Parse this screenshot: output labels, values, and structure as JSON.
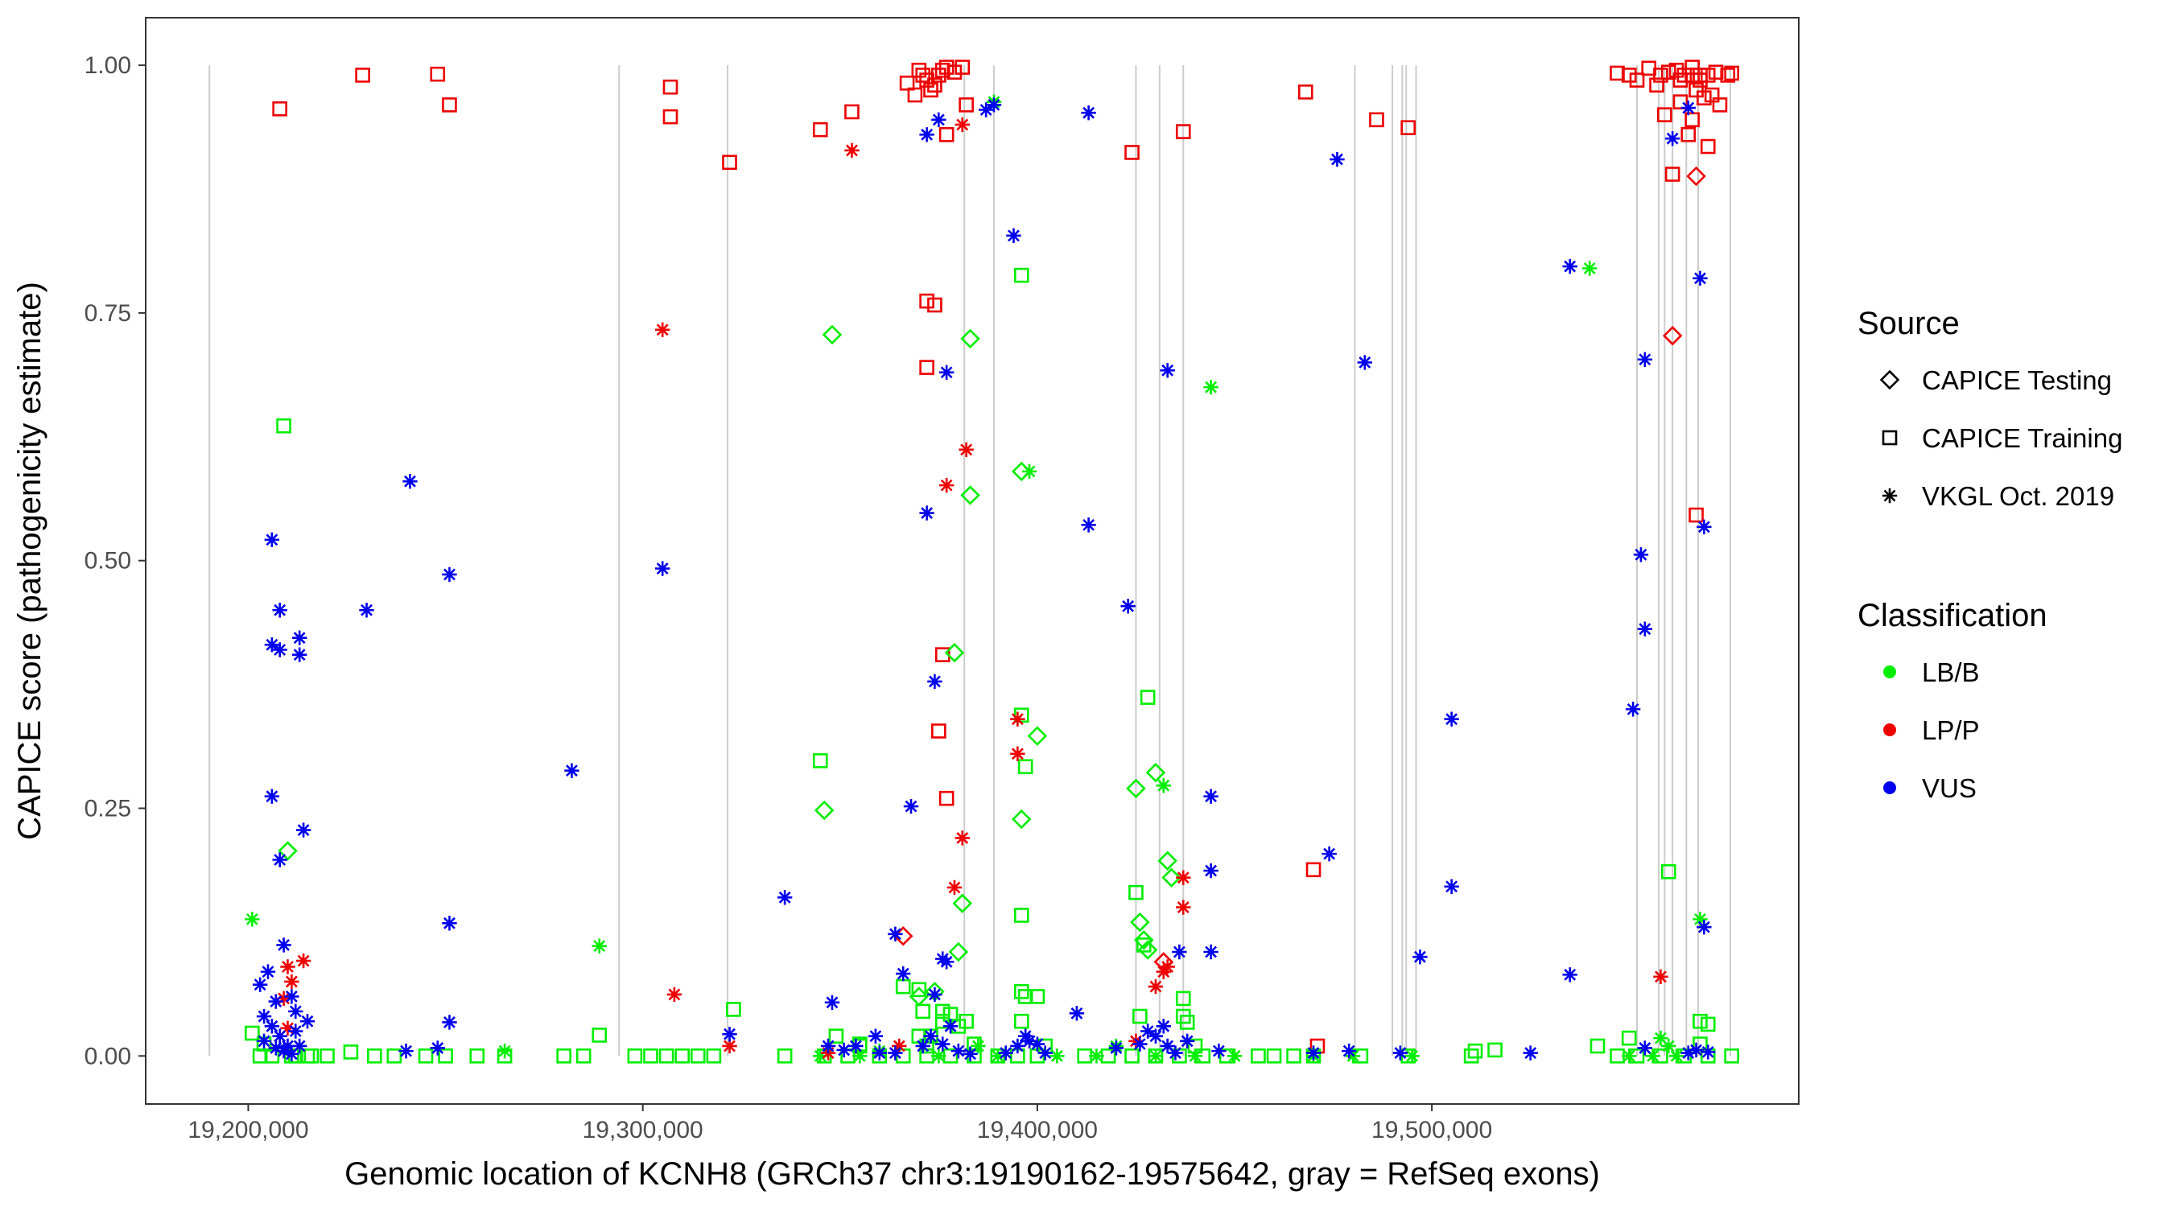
{
  "chart_data": {
    "type": "scatter",
    "title": "",
    "xlabel": "Genomic location of KCNH8 (GRCh37 chr3:19190162-19575642, gray = RefSeq exons)",
    "ylabel": "CAPICE score (pathogenicity estimate)",
    "xlim": [
      19174000,
      19593000
    ],
    "ylim": [
      -0.0485,
      1.048
    ],
    "x_ticks": [
      19200000,
      19300000,
      19400000,
      19500000
    ],
    "x_tick_labels": [
      "19,200,000",
      "19,300,000",
      "19,400,000",
      "19,500,000"
    ],
    "y_ticks": [
      0,
      0.25,
      0.5,
      0.75,
      1
    ],
    "y_tick_labels": [
      "0.00",
      "0.25",
      "0.50",
      "0.75",
      "1.00"
    ],
    "exons": [
      19190162,
      19294000,
      19321500,
      19381500,
      19389000,
      19425000,
      19431000,
      19437000,
      19480500,
      19490000,
      19492500,
      19493500,
      19496000,
      19552000,
      19557500,
      19559000,
      19561000,
      19564500,
      19567500,
      19575642
    ],
    "colors": {
      "LB/B": "#00ee00",
      "LP/P": "#ee0000",
      "VUS": "#0000ee"
    },
    "legend": {
      "source_title": "Source",
      "source_items": [
        {
          "label": "CAPICE Testing",
          "shape": "diamond"
        },
        {
          "label": "CAPICE Training",
          "shape": "square"
        },
        {
          "label": "VKGL Oct. 2019",
          "shape": "asterisk"
        }
      ],
      "class_title": "Classification",
      "class_items": [
        {
          "label": "LB/B",
          "color": "#00ee00"
        },
        {
          "label": "LP/P",
          "color": "#ee0000"
        },
        {
          "label": "VUS",
          "color": "#0000ee"
        }
      ]
    },
    "series": [
      {
        "name": "CAPICE Training LP/P",
        "shape": "square",
        "class": "LP/P",
        "x": [
          19208000,
          19229000,
          19248000,
          19251000,
          19307000,
          19307000,
          19322000,
          19345000,
          19353000,
          19367000,
          19369000,
          19370000,
          19371000,
          19372000,
          19373000,
          19374000,
          19375000,
          19376000,
          19377000,
          19379000,
          19381000,
          19382000,
          19372000,
          19374000,
          19376000,
          19372000,
          19377000,
          19375000,
          19377000,
          19424000,
          19437000,
          19468000,
          19486000,
          19494000,
          19547000,
          19550000,
          19552000,
          19555000,
          19557000,
          19558000,
          19560000,
          19562000,
          19564000,
          19566000,
          19568000,
          19570000,
          19572000,
          19575000,
          19576000,
          19559000,
          19563000,
          19565000,
          19567000,
          19569000,
          19571000,
          19573000,
          19561000,
          19566000,
          19570000,
          19567000,
          19563000,
          19566000,
          19568000,
          19470000,
          19471000
        ],
        "y": [
          0.956,
          0.99,
          0.991,
          0.96,
          0.978,
          0.948,
          0.902,
          0.935,
          0.953,
          0.982,
          0.97,
          0.995,
          0.99,
          0.985,
          0.975,
          0.98,
          0.99,
          0.995,
          0.998,
          0.993,
          0.998,
          0.96,
          0.762,
          0.758,
          0.405,
          0.695,
          0.26,
          0.328,
          0.93,
          0.912,
          0.933,
          0.973,
          0.945,
          0.937,
          0.992,
          0.99,
          0.985,
          0.997,
          0.98,
          0.99,
          0.993,
          0.995,
          0.99,
          0.998,
          0.985,
          0.99,
          0.993,
          0.99,
          0.992,
          0.95,
          0.963,
          0.93,
          0.975,
          0.967,
          0.97,
          0.96,
          0.89,
          0.945,
          0.918,
          0.546,
          0.985,
          0.99,
          0.99,
          0.188,
          0.01
        ]
      },
      {
        "name": "CAPICE Training LB/B",
        "shape": "square",
        "class": "LB/B",
        "x": [
          19209000,
          19201000,
          19204000,
          19289000,
          19323000,
          19345000,
          19355000,
          19366000,
          19370000,
          19371000,
          19376000,
          19380000,
          19382000,
          19384000,
          19396000,
          19396000,
          19397000,
          19396000,
          19396000,
          19397000,
          19396000,
          19400000,
          19402000,
          19428000,
          19425000,
          19427000,
          19437000,
          19437000,
          19438000,
          19440000,
          19550000,
          19560000,
          19568000,
          19570000,
          19568000,
          19426000,
          19376000,
          19378000,
          19370000,
          19373000,
          19372000,
          19355000,
          19349000,
          19511000,
          19516000,
          19542000,
          19211000,
          19215000,
          19220000,
          19226000,
          19232000,
          19237000,
          19245000,
          19250000,
          19258000,
          19265000,
          19280000,
          19285000,
          19298000,
          19302000,
          19306000,
          19310000,
          19314000,
          19318000,
          19336000,
          19346000,
          19352000,
          19360000,
          19366000,
          19372000,
          19378000,
          19384000,
          19390000,
          19395000,
          19400000,
          19412000,
          19418000,
          19424000,
          19430000,
          19436000,
          19442000,
          19448000,
          19456000,
          19460000,
          19465000,
          19470000,
          19482000,
          19494000,
          19510000,
          19547000,
          19552000,
          19558000,
          19564000,
          19570000,
          19576000,
          19203000,
          19206000,
          19212000,
          19216000
        ],
        "y": [
          0.636,
          0.023,
          0.012,
          0.021,
          0.047,
          0.298,
          0.012,
          0.07,
          0.067,
          0.045,
          0.035,
          0.03,
          0.035,
          0.012,
          0.788,
          0.344,
          0.292,
          0.142,
          0.065,
          0.06,
          0.035,
          0.06,
          0.01,
          0.362,
          0.165,
          0.112,
          0.058,
          0.04,
          0.034,
          0.01,
          0.018,
          0.186,
          0.035,
          0.032,
          0.012,
          0.04,
          0.045,
          0.042,
          0.02,
          0.02,
          0.01,
          0.01,
          0.02,
          0.005,
          0.006,
          0.01,
          0,
          0,
          0,
          0.004,
          0,
          0,
          0,
          0,
          0,
          0,
          0,
          0,
          0,
          0,
          0,
          0,
          0,
          0,
          0,
          0,
          0,
          0,
          0,
          0,
          0,
          0,
          0,
          0,
          0,
          0,
          0,
          0,
          0,
          0,
          0,
          0,
          0,
          0,
          0,
          0,
          0,
          0,
          0,
          0,
          0,
          0,
          0,
          0,
          0,
          0,
          0,
          0,
          0
        ]
      },
      {
        "name": "CAPICE Testing LB/B",
        "shape": "diamond",
        "class": "LB/B",
        "x": [
          19210000,
          19348000,
          19383000,
          19383000,
          19346000,
          19379000,
          19396000,
          19400000,
          19430000,
          19425000,
          19427000,
          19433000,
          19434000,
          19426000,
          19381000,
          19380000,
          19396000,
          19428000,
          19374000,
          19370000
        ],
        "y": [
          0.207,
          0.728,
          0.724,
          0.566,
          0.248,
          0.407,
          0.239,
          0.323,
          0.286,
          0.27,
          0.117,
          0.197,
          0.18,
          0.135,
          0.154,
          0.105,
          0.59,
          0.107,
          0.065,
          0.06
        ]
      },
      {
        "name": "CAPICE Testing LP/P",
        "shape": "diamond",
        "class": "LP/P",
        "x": [
          19366000,
          19561000,
          19567000,
          19432000
        ],
        "y": [
          0.121,
          0.727,
          0.888,
          0.095
        ]
      },
      {
        "name": "VKGL Oct. 2019 LB/B",
        "shape": "asterisk",
        "class": "LB/B",
        "x": [
          19201000,
          19289000,
          19389000,
          19398000,
          19432000,
          19444000,
          19540000,
          19568000,
          19265000,
          19360000,
          19385000,
          19420000,
          19558000,
          19560000,
          19345000,
          19355000,
          19375000,
          19390000,
          19405000,
          19415000,
          19430000,
          19440000,
          19450000,
          19470000,
          19480000,
          19495000,
          19550000,
          19556000,
          19562000
        ],
        "y": [
          0.138,
          0.111,
          0.963,
          0.59,
          0.273,
          0.675,
          0.795,
          0.138,
          0.005,
          0.005,
          0.01,
          0.01,
          0.018,
          0.01,
          0,
          0,
          0,
          0,
          0,
          0,
          0,
          0,
          0,
          0,
          0,
          0,
          0,
          0,
          0
        ]
      },
      {
        "name": "VKGL Oct. 2019 LP/P",
        "shape": "asterisk",
        "class": "LP/P",
        "x": [
          19210000,
          19214000,
          19209000,
          19210000,
          19211000,
          19305000,
          19308000,
          19322000,
          19353000,
          19347000,
          19381000,
          19382000,
          19377000,
          19379000,
          19381000,
          19395000,
          19395000,
          19437000,
          19437000,
          19433000,
          19432000,
          19430000,
          19558000,
          19365000,
          19425000
        ],
        "y": [
          0.09,
          0.096,
          0.058,
          0.028,
          0.075,
          0.733,
          0.062,
          0.01,
          0.914,
          0.003,
          0.94,
          0.612,
          0.576,
          0.17,
          0.22,
          0.34,
          0.305,
          0.18,
          0.15,
          0.09,
          0.085,
          0.07,
          0.08,
          0.01,
          0.015
        ]
      },
      {
        "name": "VKGL Oct. 2019 VUS",
        "shape": "asterisk",
        "class": "VUS",
        "x": [
          19206000,
          19208000,
          19206000,
          19208000,
          19213000,
          19213000,
          19206000,
          19208000,
          19214000,
          19203000,
          19205000,
          19209000,
          19211000,
          19212000,
          19207000,
          19204000,
          19206000,
          19208000,
          19210000,
          19212000,
          19215000,
          19204000,
          19207000,
          19209000,
          19211000,
          19213000,
          19241000,
          19230000,
          19251000,
          19251000,
          19251000,
          19248000,
          19240000,
          19282000,
          19305000,
          19322000,
          19336000,
          19348000,
          19354000,
          19359000,
          19364000,
          19368000,
          19366000,
          19372000,
          19374000,
          19376000,
          19377000,
          19374000,
          19377000,
          19376000,
          19378000,
          19373000,
          19372000,
          19375000,
          19387000,
          19389000,
          19394000,
          19395000,
          19398000,
          19400000,
          19397000,
          19413000,
          19413000,
          19423000,
          19410000,
          19433000,
          19436000,
          19444000,
          19444000,
          19444000,
          19433000,
          19430000,
          19435000,
          19474000,
          19476000,
          19483000,
          19470000,
          19479000,
          19505000,
          19505000,
          19497000,
          19492000,
          19525000,
          19535000,
          19535000,
          19551000,
          19553000,
          19554000,
          19554000,
          19554000,
          19561000,
          19565000,
          19567000,
          19568000,
          19569000,
          19569000,
          19565000,
          19570000,
          19428000,
          19432000,
          19420000,
          19426000,
          19438000,
          19446000,
          19371000,
          19380000,
          19392000,
          19402000,
          19347000,
          19360000,
          19364000,
          19351000,
          19383000
        ],
        "y": [
          0.521,
          0.45,
          0.415,
          0.41,
          0.422,
          0.405,
          0.262,
          0.198,
          0.228,
          0.072,
          0.085,
          0.112,
          0.06,
          0.045,
          0.055,
          0.04,
          0.03,
          0.02,
          0.01,
          0.025,
          0.035,
          0.015,
          0.008,
          0.005,
          0.002,
          0.01,
          0.58,
          0.45,
          0.486,
          0.134,
          0.034,
          0.008,
          0.005,
          0.288,
          0.492,
          0.022,
          0.16,
          0.054,
          0.01,
          0.02,
          0.123,
          0.252,
          0.083,
          0.548,
          0.378,
          0.098,
          0.69,
          0.062,
          0.095,
          0.012,
          0.03,
          0.02,
          0.93,
          0.945,
          0.955,
          0.96,
          0.828,
          0.01,
          0.015,
          0.012,
          0.02,
          0.952,
          0.536,
          0.454,
          0.043,
          0.692,
          0.105,
          0.262,
          0.187,
          0.105,
          0.01,
          0.02,
          0.003,
          0.204,
          0.905,
          0.7,
          0.003,
          0.005,
          0.34,
          0.171,
          0.1,
          0.003,
          0.003,
          0.797,
          0.082,
          0.35,
          0.506,
          0.431,
          0.703,
          0.008,
          0.926,
          0.957,
          0.006,
          0.785,
          0.534,
          0.13,
          0.003,
          0.004,
          0.025,
          0.03,
          0.008,
          0.012,
          0.015,
          0.005,
          0.01,
          0.005,
          0.003,
          0.003,
          0.01,
          0.003,
          0.003,
          0.006,
          0.002
        ]
      }
    ]
  }
}
